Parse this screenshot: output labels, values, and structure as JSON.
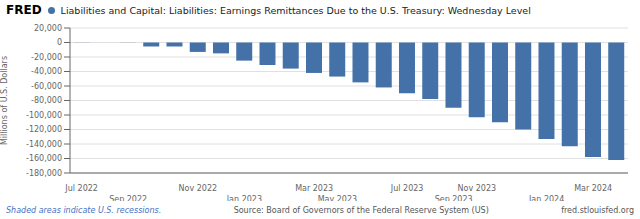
{
  "chart_data": {
    "type": "bar",
    "title": "Liabilities and Capital: Liabilities: Earnings Remittances Due to the U.S. Treasury: Wednesday Level",
    "ylabel": "Millions of U.S. Dollars",
    "annotations": [
      "FRED",
      "Shaded areas indicate U.S. recessions.",
      "Source: Board of Governors of the Federal Reserve System (US)",
      "fred.stlouisfed.org"
    ],
    "categories": [
      "Jul 2022",
      null,
      "Sep 2022",
      null,
      null,
      "Nov 2022",
      null,
      "Jan 2023",
      null,
      null,
      "Mar 2023",
      "May 2023",
      null,
      null,
      "Jul 2023",
      null,
      "Sep 2023",
      "Nov 2023",
      null,
      null,
      "Jan 2024",
      null,
      "Mar 2024",
      null
    ],
    "values": [
      -200,
      0,
      -200,
      -5500,
      -5500,
      -13000,
      -15000,
      -25000,
      -31000,
      -36000,
      -42000,
      -47000,
      -55000,
      -62000,
      -70000,
      -78000,
      -90000,
      -103000,
      -110000,
      -120000,
      -133000,
      -143000,
      -158000,
      -162000
    ],
    "color": "#4472a8",
    "ylim": [
      -180000,
      20000
    ],
    "yticks": [
      {
        "value": 20000,
        "label": "20,000"
      },
      0,
      {
        "value": -20000,
        "label": "-20,000"
      },
      {
        "value": -40000,
        "label": "-40,000"
      },
      {
        "value": -60000,
        "label": "-60,000"
      },
      {
        "value": -80000,
        "label": "-80,000"
      },
      {
        "value": -100000,
        "label": "-100,000"
      },
      {
        "value": -120000,
        "label": "-120,000"
      },
      {
        "value": -140000,
        "label": "-140,000"
      },
      {
        "value": -160000,
        "label": "-160,000"
      },
      {
        "value": -180000,
        "label": "-180,000"
      }
    ],
    "grid": true
  }
}
